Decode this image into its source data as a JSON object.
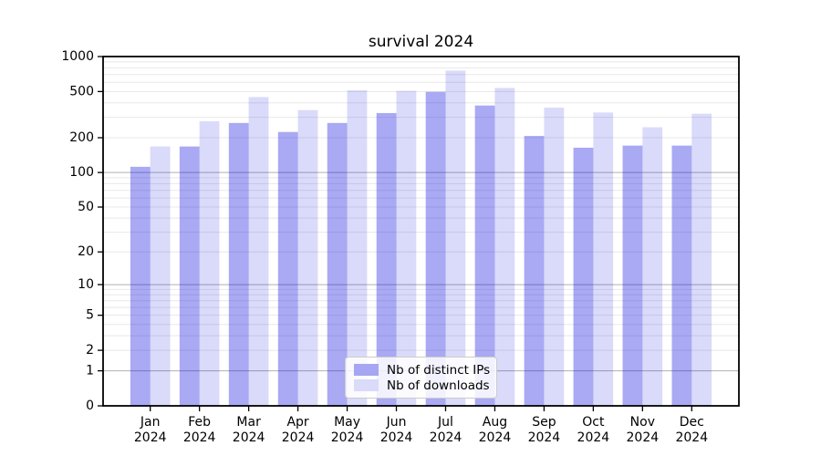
{
  "chart_data": {
    "type": "bar",
    "title": "survival 2024",
    "categories": [
      "Jan",
      "Feb",
      "Mar",
      "Apr",
      "May",
      "Jun",
      "Jul",
      "Aug",
      "Sep",
      "Oct",
      "Nov",
      "Dec"
    ],
    "category_year": "2024",
    "series": [
      {
        "name": "Nb of distinct IPs",
        "values": [
          112,
          168,
          268,
          224,
          268,
          326,
          497,
          379,
          207,
          164,
          171,
          171
        ],
        "fill_opacity": 0.35,
        "color_on_white": "#a6a6f3"
      },
      {
        "name": "Nb of downloads",
        "values": [
          168,
          277,
          448,
          346,
          512,
          506,
          757,
          537,
          363,
          330,
          246,
          322
        ],
        "fill_opacity": 0.15,
        "color_on_white": "#dadaf9"
      }
    ],
    "base_color": "#0808e0",
    "yscale": "log1p",
    "ylim": [
      0,
      1000
    ],
    "yticks": [
      0,
      1,
      2,
      5,
      10,
      20,
      50,
      100,
      200,
      500,
      1000
    ],
    "grid": "horizontal, major decades + log minors, drawn under translucent bars",
    "grid_major_color": "#b0b0b0",
    "grid_minor_color": "#e8e8e8",
    "axis_color": "#000000",
    "legend_position": "lower center"
  }
}
